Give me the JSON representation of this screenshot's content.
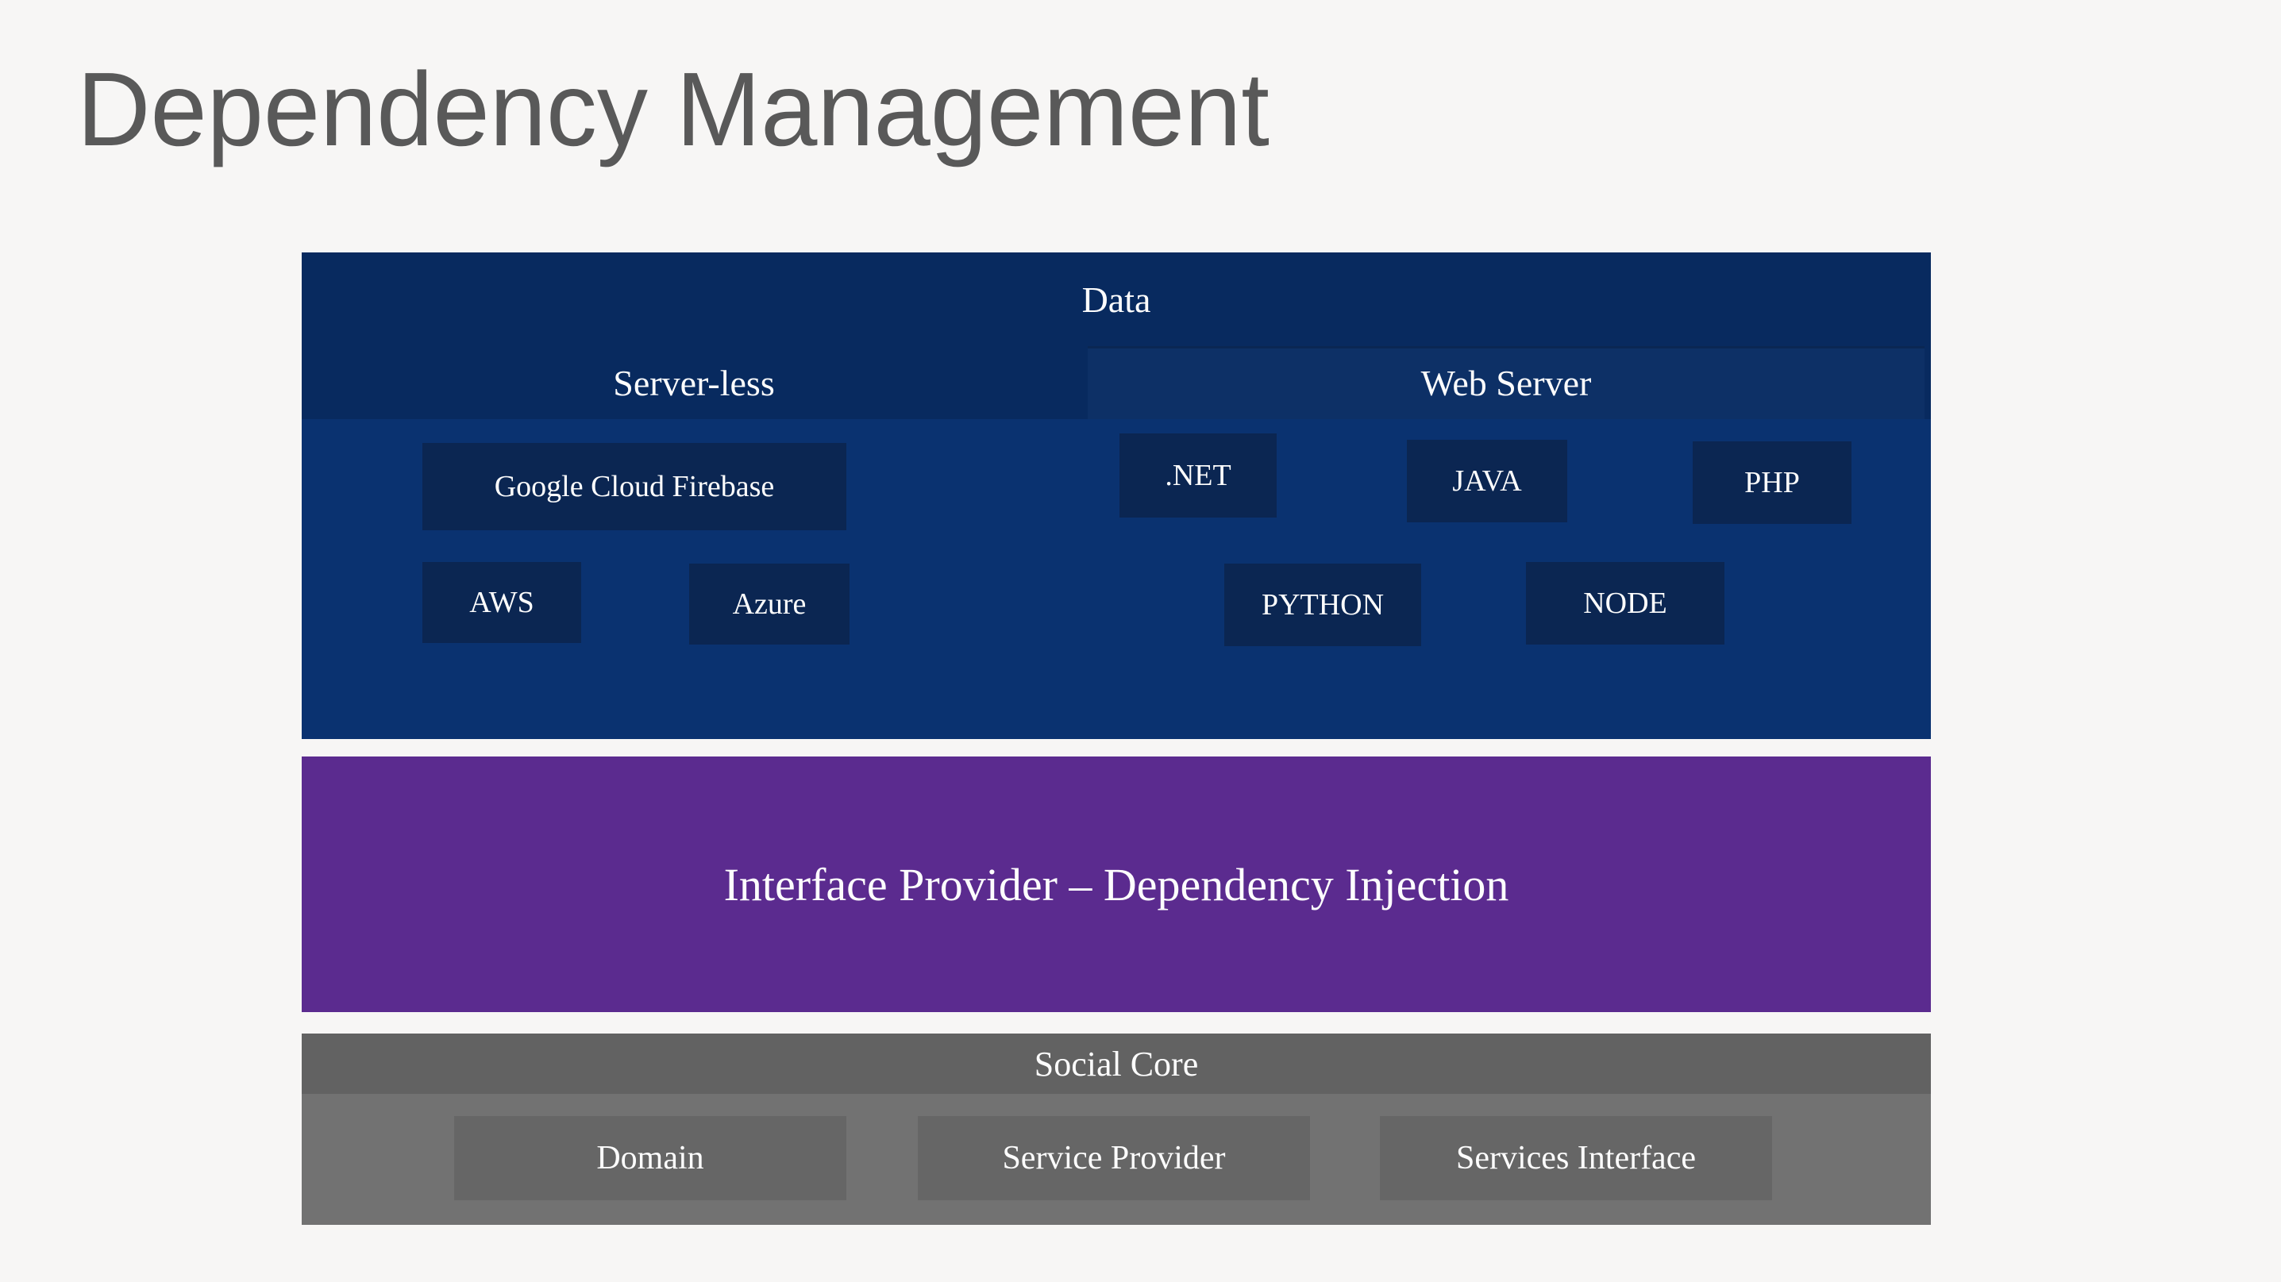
{
  "slide": {
    "title": "Dependency Management"
  },
  "diagram": {
    "data_layer": {
      "title": "Data",
      "columns": [
        {
          "label": "Server-less",
          "chips": [
            "Google Cloud Firebase",
            "AWS",
            "Azure"
          ]
        },
        {
          "label": "Web Server",
          "chips": [
            ".NET",
            "JAVA",
            "PHP",
            "PYTHON",
            "NODE"
          ]
        }
      ]
    },
    "interface_layer": {
      "label": "Interface Provider – Dependency Injection"
    },
    "social_layer": {
      "title": "Social Core",
      "chips": [
        "Domain",
        "Service Provider",
        "Services Interface"
      ]
    }
  },
  "colors": {
    "background": "#f7f6f5",
    "title-text": "#595959",
    "navy-header": "#082a5f",
    "navy-cell": "#0d3066",
    "navy-body": "#0a3270",
    "navy-chip": "#0b2652",
    "purple": "#5b2b8f",
    "gray-header": "#626262",
    "gray-body": "#727272",
    "gray-chip": "#666666",
    "text-light": "#fdfdfd"
  }
}
